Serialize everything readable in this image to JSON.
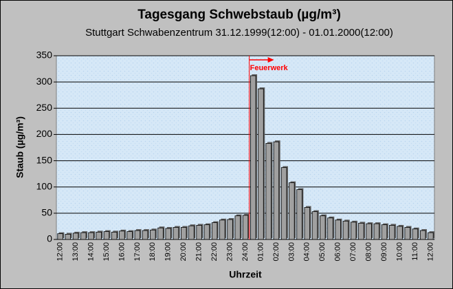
{
  "chart_data": {
    "type": "bar",
    "title": "Tagesgang Schwebstaub (µg/m³)",
    "subtitle": "Stuttgart Schwabenzentrum 31.12.1999(12:00) - 01.01.2000(12:00)",
    "x_label": "Uhrzeit",
    "y_label": "Staub (µg/m³)",
    "annotation": "Feuerwerk",
    "annotation_color": "#ff0000",
    "color": "#a0a0a0",
    "grid": true,
    "categories": [
      "12:00",
      null,
      "13:00",
      null,
      "14:00",
      null,
      "15:00",
      null,
      "16:00",
      null,
      "17:00",
      null,
      "18:00",
      null,
      "19:00",
      null,
      "20:00",
      null,
      "21:00",
      null,
      "22:00",
      null,
      "23:00",
      null,
      "24:00",
      null,
      "01:00",
      null,
      "02:00",
      null,
      "03:00",
      null,
      "04:00",
      null,
      "05:00",
      null,
      "06:00",
      null,
      "07:00",
      null,
      "08:00",
      null,
      "09:00",
      null,
      "10:00",
      null,
      "11:00",
      null,
      "12:00"
    ],
    "values": [
      11,
      10,
      12,
      13,
      13,
      14,
      15,
      14,
      16,
      15,
      17,
      17,
      18,
      22,
      21,
      23,
      23,
      26,
      27,
      28,
      32,
      37,
      38,
      45,
      46,
      312,
      287,
      183,
      186,
      137,
      108,
      95,
      61,
      53,
      45,
      41,
      37,
      35,
      33,
      31,
      30,
      30,
      28,
      27,
      25,
      23,
      20,
      17,
      13
    ],
    "ylim": [
      0,
      350
    ],
    "yticks": [
      0,
      50,
      100,
      150,
      200,
      250,
      300,
      350
    ]
  }
}
